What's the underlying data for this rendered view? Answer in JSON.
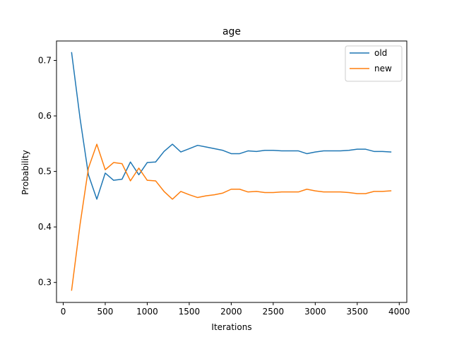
{
  "chart_data": {
    "type": "line",
    "title": "age",
    "xlabel": "Iterations",
    "ylabel": "Probability",
    "xlim": [
      -80,
      4090
    ],
    "ylim": [
      0.264,
      0.735
    ],
    "xticks": [
      0,
      500,
      1000,
      1500,
      2000,
      2500,
      3000,
      3500,
      4000
    ],
    "yticks": [
      0.3,
      0.4,
      0.5,
      0.6,
      0.7
    ],
    "grid": false,
    "legend_position": "top-right",
    "x": [
      100,
      200,
      300,
      400,
      500,
      600,
      700,
      800,
      900,
      1000,
      1100,
      1200,
      1300,
      1400,
      1500,
      1600,
      1700,
      1800,
      1900,
      2000,
      2100,
      2200,
      2300,
      2400,
      2500,
      2600,
      2700,
      2800,
      2900,
      3000,
      3100,
      3200,
      3300,
      3400,
      3500,
      3600,
      3700,
      3800,
      3900
    ],
    "series": [
      {
        "name": "old",
        "color": "#1f77b4",
        "values": [
          0.714,
          0.596,
          0.494,
          0.45,
          0.497,
          0.484,
          0.486,
          0.517,
          0.494,
          0.516,
          0.517,
          0.536,
          0.549,
          0.535,
          0.541,
          0.547,
          0.544,
          0.541,
          0.538,
          0.532,
          0.532,
          0.537,
          0.536,
          0.538,
          0.538,
          0.537,
          0.537,
          0.537,
          0.532,
          0.535,
          0.537,
          0.537,
          0.537,
          0.538,
          0.54,
          0.54,
          0.536,
          0.536,
          0.535
        ]
      },
      {
        "name": "new",
        "color": "#ff7f0e",
        "values": [
          0.286,
          0.404,
          0.506,
          0.549,
          0.503,
          0.516,
          0.514,
          0.483,
          0.506,
          0.484,
          0.483,
          0.464,
          0.45,
          0.464,
          0.458,
          0.453,
          0.456,
          0.458,
          0.461,
          0.468,
          0.468,
          0.463,
          0.464,
          0.462,
          0.462,
          0.463,
          0.463,
          0.463,
          0.468,
          0.465,
          0.463,
          0.463,
          0.463,
          0.462,
          0.46,
          0.46,
          0.464,
          0.464,
          0.465
        ]
      }
    ]
  }
}
